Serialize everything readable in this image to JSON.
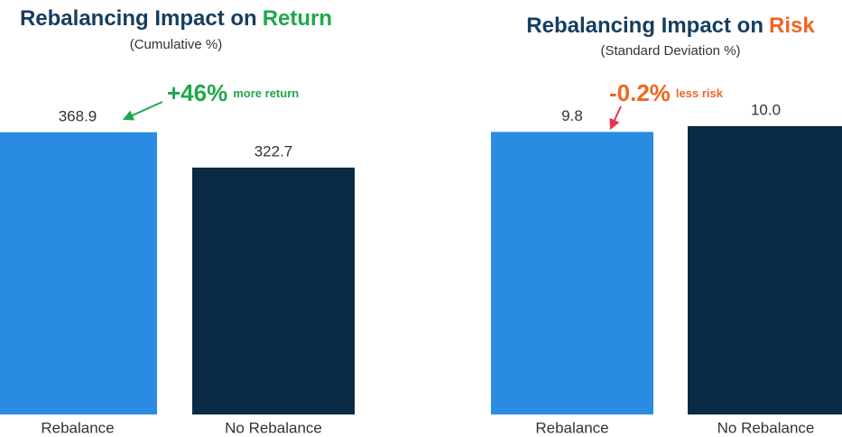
{
  "chart_data": [
    {
      "type": "bar",
      "title": [
        "Rebalancing Impact on",
        "Return"
      ],
      "title_highlight_color": "#1fa84a",
      "subtitle": "(Cumulative %)",
      "categories": [
        "Rebalance",
        "No Rebalance"
      ],
      "values": [
        368.9,
        322.7
      ],
      "value_labels": [
        "368.9",
        "322.7"
      ],
      "colors": [
        "#2a8be2",
        "#0b2a45"
      ],
      "ylim": [
        0,
        424
      ],
      "annotation": {
        "figure": "+46%",
        "text": "more return",
        "color": "#1fa84a"
      }
    },
    {
      "type": "bar",
      "title": [
        "Rebalancing Impact on",
        "Risk"
      ],
      "title_highlight_color": "#f26522",
      "subtitle": "(Standard Deviation %)",
      "categories": [
        "Rebalance",
        "No Rebalance"
      ],
      "values": [
        9.8,
        10.0
      ],
      "value_labels": [
        "9.8",
        "10.0"
      ],
      "colors": [
        "#2a8be2",
        "#0b2a45"
      ],
      "ylim": [
        0,
        11.25
      ],
      "annotation": {
        "figure": "-0.2%",
        "text": "less risk",
        "color": "#f26522"
      }
    }
  ]
}
